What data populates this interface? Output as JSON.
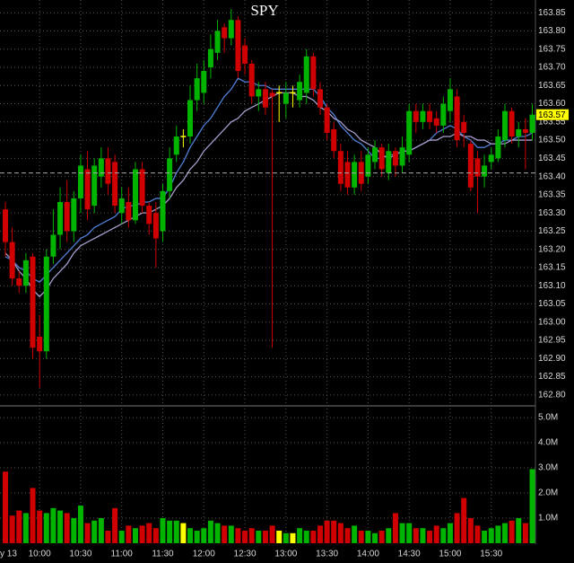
{
  "chart_data": [
    {
      "type": "candlestick",
      "title": "SPY",
      "open": [
        163.31,
        163.22,
        163.12,
        163.1,
        163.18,
        162.96,
        162.92,
        163.18,
        163.24,
        163.33,
        163.25,
        163.34,
        163.42,
        163.32,
        163.4,
        163.45,
        163.44,
        163.3,
        163.33,
        163.28,
        163.42,
        163.32,
        163.3,
        163.25,
        163.36,
        163.46,
        163.51,
        163.51,
        163.61,
        163.63,
        163.7,
        163.74,
        163.81,
        163.78,
        163.83,
        163.76,
        163.71,
        163.62,
        163.64,
        163.63,
        163.63,
        163.6,
        163.63,
        163.61,
        163.63,
        163.73,
        163.64,
        163.59,
        163.53,
        163.47,
        163.44,
        163.37,
        163.44,
        163.4,
        163.44,
        163.48,
        163.41,
        163.47,
        163.43,
        163.46,
        163.58,
        163.55,
        163.58,
        163.56,
        163.54,
        163.58,
        163.62,
        163.55,
        163.49,
        163.45,
        163.4,
        163.44,
        163.45,
        163.5,
        163.58,
        163.51,
        163.53,
        163.52
      ],
      "high": [
        163.33,
        163.26,
        163.14,
        163.19,
        163.19,
        163.02,
        163.2,
        163.31,
        163.37,
        163.39,
        163.36,
        163.46,
        163.47,
        163.45,
        163.48,
        163.48,
        163.46,
        163.37,
        163.37,
        163.44,
        163.44,
        163.33,
        163.33,
        163.38,
        163.48,
        163.54,
        163.53,
        163.65,
        163.71,
        163.72,
        163.79,
        163.83,
        163.82,
        163.86,
        163.84,
        163.78,
        163.72,
        163.66,
        163.66,
        163.64,
        163.65,
        163.66,
        163.65,
        163.68,
        163.75,
        163.74,
        163.66,
        163.6,
        163.55,
        163.49,
        163.47,
        163.46,
        163.47,
        163.48,
        163.5,
        163.49,
        163.49,
        163.48,
        163.51,
        163.6,
        163.6,
        163.6,
        163.6,
        163.58,
        163.62,
        163.67,
        163.64,
        163.57,
        163.5,
        163.47,
        163.46,
        163.48,
        163.53,
        163.6,
        163.59,
        163.55,
        163.56,
        163.6
      ],
      "low": [
        163.18,
        163.1,
        163.08,
        163.08,
        162.9,
        162.82,
        162.9,
        163.16,
        163.2,
        163.22,
        163.22,
        163.3,
        163.28,
        163.3,
        163.37,
        163.35,
        163.3,
        163.27,
        163.26,
        163.27,
        163.3,
        163.24,
        163.15,
        163.22,
        163.34,
        163.44,
        163.48,
        163.49,
        163.58,
        163.6,
        163.67,
        163.72,
        163.74,
        163.76,
        163.67,
        163.68,
        163.6,
        163.58,
        163.57,
        162.93,
        163.55,
        163.56,
        163.59,
        163.59,
        163.6,
        163.62,
        163.57,
        163.5,
        163.45,
        163.36,
        163.35,
        163.35,
        163.36,
        163.38,
        163.42,
        163.4,
        163.39,
        163.4,
        163.41,
        163.44,
        163.52,
        163.53,
        163.53,
        163.52,
        163.52,
        163.55,
        163.48,
        163.48,
        163.36,
        163.3,
        163.37,
        163.42,
        163.44,
        163.48,
        163.49,
        163.48,
        163.42,
        163.5
      ],
      "close": [
        163.22,
        163.12,
        163.1,
        163.17,
        162.93,
        162.92,
        163.18,
        163.24,
        163.33,
        163.25,
        163.34,
        163.43,
        163.31,
        163.43,
        163.45,
        163.38,
        163.32,
        163.34,
        163.28,
        163.42,
        163.32,
        163.27,
        163.23,
        163.36,
        163.45,
        163.51,
        163.51,
        163.61,
        163.67,
        163.69,
        163.75,
        163.8,
        163.78,
        163.83,
        163.69,
        163.71,
        163.62,
        163.64,
        163.59,
        163.62,
        163.63,
        163.63,
        163.63,
        163.66,
        163.73,
        163.64,
        163.59,
        163.52,
        163.47,
        163.38,
        163.37,
        163.44,
        163.38,
        163.46,
        163.48,
        163.42,
        163.47,
        163.43,
        163.48,
        163.58,
        163.55,
        163.58,
        163.55,
        163.54,
        163.6,
        163.64,
        163.5,
        163.52,
        163.37,
        163.4,
        163.43,
        163.46,
        163.51,
        163.58,
        163.51,
        163.53,
        163.52,
        163.57
      ],
      "up_color": "#00b400",
      "down_color": "#d00000",
      "doji_color": "#ffff00",
      "series": [
        {
          "color": "#4f7fd6",
          "values": [
            163.18,
            163.17,
            163.15,
            163.14,
            163.12,
            163.11,
            163.13,
            163.15,
            163.17,
            163.19,
            163.21,
            163.23,
            163.24,
            163.26,
            163.27,
            163.28,
            163.29,
            163.31,
            163.32,
            163.32,
            163.33,
            163.33,
            163.34,
            163.34,
            163.37,
            163.41,
            163.44,
            163.48,
            163.51,
            163.54,
            163.56,
            163.59,
            163.62,
            163.64,
            163.67,
            163.66,
            163.66,
            163.65,
            163.65,
            163.64,
            163.64,
            163.64,
            163.64,
            163.64,
            163.64,
            163.64,
            163.62,
            163.59,
            163.57,
            163.54,
            163.52,
            163.5,
            163.49,
            163.47,
            163.45,
            163.45,
            163.46,
            163.46,
            163.47,
            163.47,
            163.48,
            163.49,
            163.5,
            163.52,
            163.53,
            163.54,
            163.53,
            163.51,
            163.5,
            163.48,
            163.48,
            163.49,
            163.49,
            163.5,
            163.5,
            163.51,
            163.51,
            163.52
          ]
        },
        {
          "color": "#a89ccc",
          "values": [
            163.19,
            163.17,
            163.14,
            163.12,
            163.09,
            163.07,
            163.09,
            163.12,
            163.14,
            163.16,
            163.19,
            163.21,
            163.22,
            163.23,
            163.24,
            163.25,
            163.26,
            163.27,
            163.28,
            163.29,
            163.3,
            163.3,
            163.31,
            163.32,
            163.34,
            163.37,
            163.39,
            163.42,
            163.44,
            163.47,
            163.49,
            163.51,
            163.53,
            163.55,
            163.56,
            163.58,
            163.59,
            163.6,
            163.61,
            163.62,
            163.63,
            163.63,
            163.63,
            163.62,
            163.62,
            163.61,
            163.59,
            163.58,
            163.56,
            163.55,
            163.53,
            163.52,
            163.5,
            163.49,
            163.48,
            163.46,
            163.45,
            163.46,
            163.47,
            163.47,
            163.48,
            163.49,
            163.5,
            163.5,
            163.51,
            163.51,
            163.52,
            163.51,
            163.51,
            163.5,
            163.5,
            163.49,
            163.49,
            163.49,
            163.5,
            163.5,
            163.5,
            163.5
          ]
        }
      ],
      "reference_line": 163.41,
      "last_price": 163.57,
      "ylim": [
        162.775,
        163.885
      ],
      "yticks": [
        {
          "value": 162.8,
          "label": "162.80"
        },
        162.85,
        {
          "value": 162.9,
          "label": "162.90"
        },
        162.95,
        {
          "value": 163,
          "label": "163.00"
        },
        163.05,
        {
          "value": 163.1,
          "label": "163.10"
        },
        163.15,
        {
          "value": 163.2,
          "label": "163.20"
        },
        163.25,
        {
          "value": 163.3,
          "label": "163.30"
        },
        163.35,
        {
          "value": 163.4,
          "label": "163.40"
        },
        163.45,
        {
          "value": 163.5,
          "label": "163.50"
        },
        163.55,
        {
          "value": 163.6,
          "label": "163.60"
        },
        163.65,
        {
          "value": 163.7,
          "label": "163.70"
        },
        163.75,
        {
          "value": 163.8,
          "label": "163.80"
        },
        163.85
      ],
      "grid": true
    },
    {
      "type": "bar",
      "categories": [
        "y 13",
        null,
        null,
        null,
        null,
        "10:00",
        null,
        null,
        null,
        null,
        null,
        "10:30",
        null,
        null,
        null,
        null,
        null,
        "11:00",
        null,
        null,
        null,
        null,
        null,
        "11:30",
        null,
        null,
        null,
        null,
        null,
        "12:00",
        null,
        null,
        null,
        null,
        null,
        "12:30",
        null,
        null,
        null,
        null,
        null,
        "13:00",
        null,
        null,
        null,
        null,
        null,
        "13:30",
        null,
        null,
        null,
        null,
        null,
        "14:00",
        null,
        null,
        null,
        null,
        null,
        "14:30",
        null,
        null,
        null,
        null,
        null,
        "15:00",
        null,
        null,
        null,
        null,
        null,
        "15:30",
        null,
        null,
        null,
        null,
        null,
        null
      ],
      "values": [
        2.85,
        1.1,
        1.3,
        1.2,
        2.2,
        1.3,
        1.2,
        1.4,
        1.3,
        1.2,
        1.0,
        1.5,
        0.8,
        0.9,
        1.0,
        0.5,
        1.4,
        0.5,
        0.7,
        0.6,
        0.7,
        0.8,
        0.6,
        1.0,
        0.9,
        0.9,
        0.8,
        0.6,
        0.5,
        0.6,
        0.9,
        0.8,
        0.7,
        0.7,
        0.6,
        0.5,
        0.6,
        0.5,
        0.5,
        0.7,
        0.5,
        0.4,
        0.4,
        0.6,
        0.5,
        0.5,
        0.7,
        0.9,
        0.9,
        0.8,
        0.6,
        0.7,
        0.5,
        0.5,
        0.4,
        0.5,
        0.6,
        1.2,
        0.8,
        0.8,
        0.6,
        0.6,
        0.5,
        0.7,
        0.6,
        0.8,
        1.2,
        1.8,
        1.0,
        0.7,
        0.5,
        0.6,
        0.7,
        0.8,
        0.9,
        1.0,
        0.8,
        2.95
      ],
      "ylim": [
        0,
        5.36
      ],
      "yticks": [
        {
          "value": 1,
          "label": "1.0M"
        },
        {
          "value": 2,
          "label": "2.0M"
        },
        {
          "value": 3,
          "label": "3.0M"
        },
        {
          "value": 4,
          "label": "4.0M"
        },
        {
          "value": 5,
          "label": "5.0M"
        }
      ],
      "grid": true
    }
  ]
}
